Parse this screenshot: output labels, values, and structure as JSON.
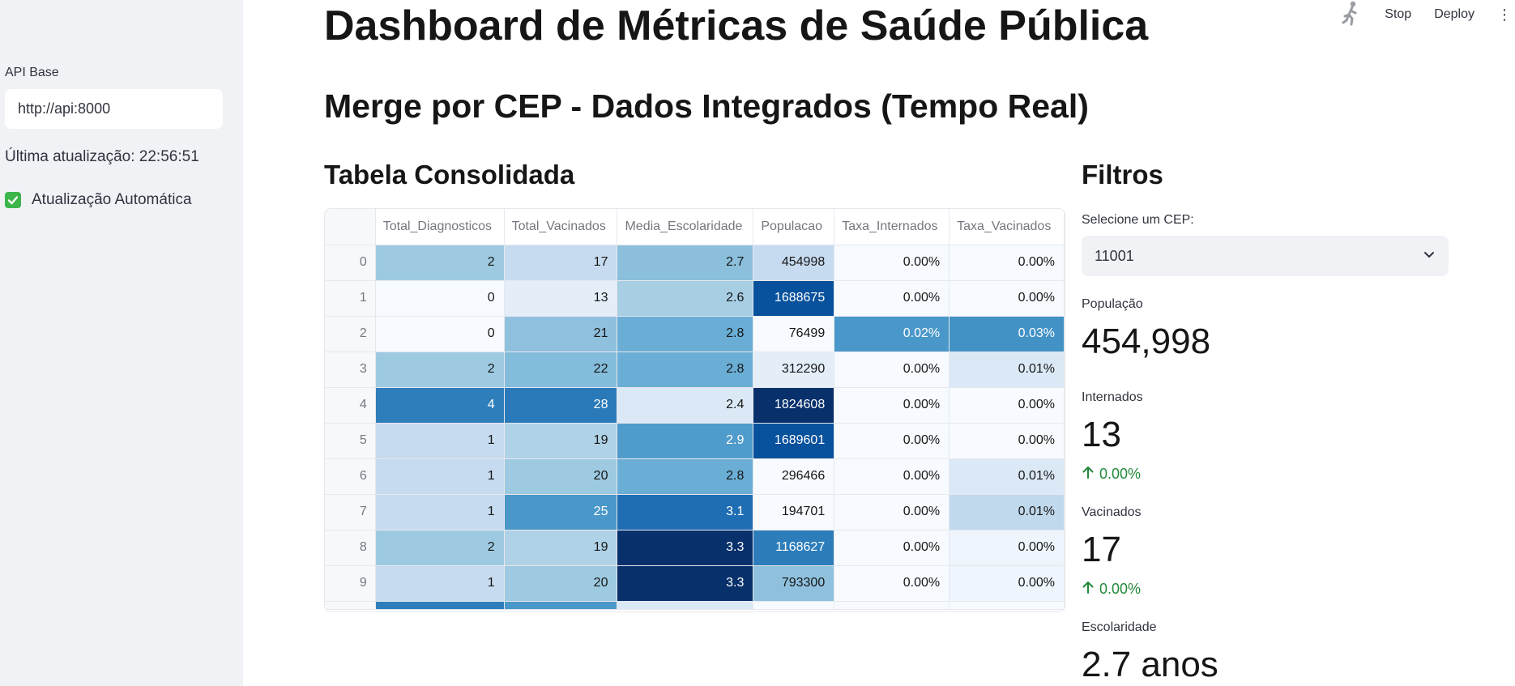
{
  "topbar": {
    "stop_label": "Stop",
    "deploy_label": "Deploy",
    "running_icon": "running-man-icon",
    "menu_icon": "kebab-menu-icon"
  },
  "sidebar": {
    "api_label": "API Base",
    "api_value": "http://api:8000",
    "last_update": "Última atualização: 22:56:51",
    "auto_update_label": "Atualização Automática",
    "auto_update_checked": true
  },
  "main": {
    "title": "Dashboard de Métricas de Saúde Pública",
    "subtitle": "Merge por CEP - Dados Integrados (Tempo Real)",
    "table_heading": "Tabela Consolidada",
    "filters_heading": "Filtros"
  },
  "table": {
    "columns": [
      "Total_Diagnosticos",
      "Total_Vacinados",
      "Media_Escolaridade",
      "Populacao",
      "Taxa_Internados",
      "Taxa_Vacinados"
    ],
    "rows": [
      {
        "idx": "0",
        "cells": [
          "2",
          "17",
          "2.7",
          "454998",
          "0.00%",
          "0.00%"
        ]
      },
      {
        "idx": "1",
        "cells": [
          "0",
          "13",
          "2.6",
          "1688675",
          "0.00%",
          "0.00%"
        ]
      },
      {
        "idx": "2",
        "cells": [
          "0",
          "21",
          "2.8",
          "76499",
          "0.02%",
          "0.03%"
        ]
      },
      {
        "idx": "3",
        "cells": [
          "2",
          "22",
          "2.8",
          "312290",
          "0.00%",
          "0.01%"
        ]
      },
      {
        "idx": "4",
        "cells": [
          "4",
          "28",
          "2.4",
          "1824608",
          "0.00%",
          "0.00%"
        ]
      },
      {
        "idx": "5",
        "cells": [
          "1",
          "19",
          "2.9",
          "1689601",
          "0.00%",
          "0.00%"
        ]
      },
      {
        "idx": "6",
        "cells": [
          "1",
          "20",
          "2.8",
          "296466",
          "0.00%",
          "0.01%"
        ]
      },
      {
        "idx": "7",
        "cells": [
          "1",
          "25",
          "3.1",
          "194701",
          "0.00%",
          "0.01%"
        ]
      },
      {
        "idx": "8",
        "cells": [
          "2",
          "19",
          "3.3",
          "1168627",
          "0.00%",
          "0.00%"
        ]
      },
      {
        "idx": "9",
        "cells": [
          "1",
          "20",
          "3.3",
          "793300",
          "0.00%",
          "0.00%"
        ]
      }
    ],
    "cell_colors": [
      [
        "#9ecae1",
        "#c6dbef",
        "#8bbfdc",
        "#c6dbef",
        "#f7fbff",
        "#f7fbff"
      ],
      [
        "#f7fbff",
        "#e3eef9",
        "#a8cee4",
        "#08519c",
        "#f7fbff",
        "#f7fbff"
      ],
      [
        "#f7fbff",
        "#8fc1de",
        "#6aaed6",
        "#f7fbff",
        "#4a98c9",
        "#4292c6"
      ],
      [
        "#9ecae1",
        "#84bcdb",
        "#6aaed6",
        "#e3eef9",
        "#f7fbff",
        "#dbe9f6"
      ],
      [
        "#2f7ebc",
        "#2a7ab9",
        "#dbe9f6",
        "#08306b",
        "#f7fbff",
        "#f7fbff"
      ],
      [
        "#c6dbef",
        "#b0d2e7",
        "#4f9bcb",
        "#08519c",
        "#f7fbff",
        "#f7fbff"
      ],
      [
        "#c6dbef",
        "#9dcae1",
        "#6aaed6",
        "#f7fbff",
        "#f7fbff",
        "#dbe9f6"
      ],
      [
        "#c6dbef",
        "#4a98c9",
        "#1f6eb3",
        "#f7fbff",
        "#f7fbff",
        "#c1d9ed"
      ],
      [
        "#9ecae1",
        "#b0d2e7",
        "#08306b",
        "#2d7dbb",
        "#f7fbff",
        "#eef5fc"
      ],
      [
        "#c6dbef",
        "#9dcae1",
        "#08306b",
        "#8fc1de",
        "#f7fbff",
        "#eef5fc"
      ]
    ],
    "partial_row_colors": [
      "#2f7ebc",
      "#4a98c9",
      "#dbe9f6",
      "#f7fbff",
      "#f7fbff",
      "#f7fbff"
    ]
  },
  "filters": {
    "select_label": "Selecione um CEP:",
    "select_value": "11001",
    "metrics": {
      "populacao": {
        "label": "População",
        "value": "454,998"
      },
      "internados": {
        "label": "Internados",
        "value": "13",
        "delta": "0.00%"
      },
      "vacinados": {
        "label": "Vacinados",
        "value": "17",
        "delta": "0.00%"
      },
      "escolaridade": {
        "label": "Escolaridade",
        "value": "2.7 anos"
      }
    }
  },
  "colors": {
    "accent_green": "#21893a",
    "checkbox_green": "#3cb54a",
    "sidebar_bg": "#f0f2f6"
  }
}
